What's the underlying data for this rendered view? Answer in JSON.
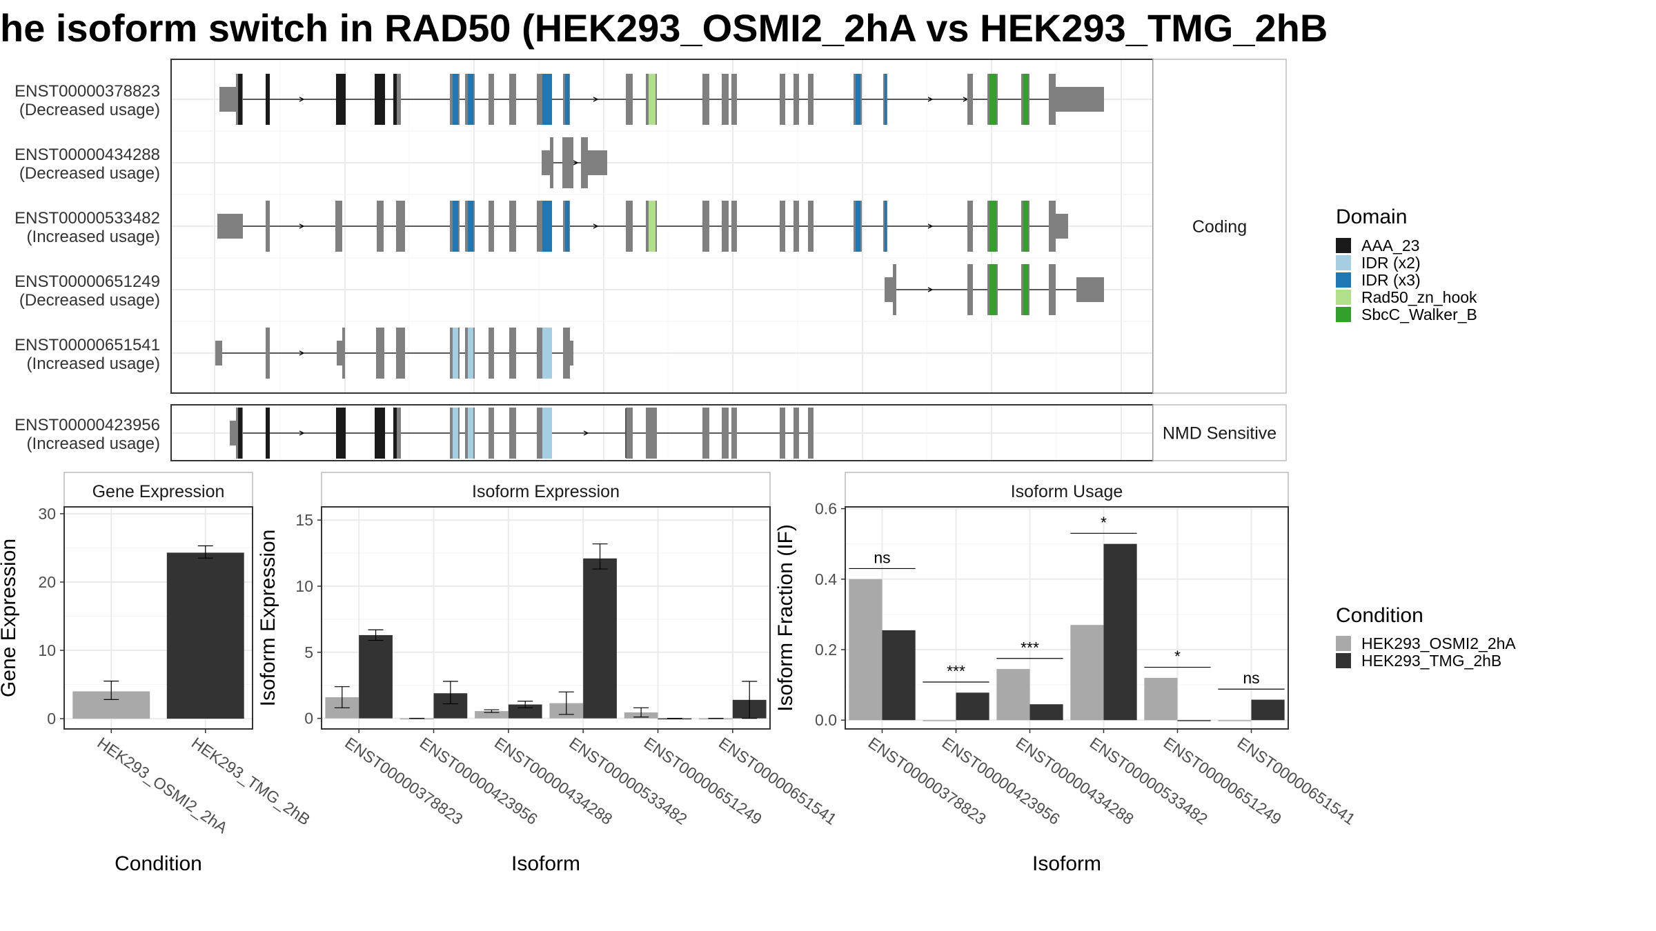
{
  "title": "he isoform switch in RAD50 (HEK293_OSMI2_2hA vs HEK293_TMG_2hB",
  "colors": {
    "AAA_23": "#1a1a1a",
    "IDR (x2)": "#a6cee3",
    "IDR (x3)": "#1f78b4",
    "Rad50_zn_hook": "#b2df8a",
    "SbcC_Walker_B": "#33a02c",
    "none": "#808080",
    "cond_a": "#a9a9a9",
    "cond_b": "#333333"
  },
  "structure": {
    "facets": [
      "Coding",
      "NMD Sensitive"
    ],
    "transcripts": [
      {
        "id": "ENST00000378823",
        "usage": "(Decreased usage)",
        "group": "Coding"
      },
      {
        "id": "ENST00000434288",
        "usage": "(Decreased usage)",
        "group": "Coding"
      },
      {
        "id": "ENST00000533482",
        "usage": "(Increased usage)",
        "group": "Coding"
      },
      {
        "id": "ENST00000651249",
        "usage": "(Decreased usage)",
        "group": "Coding"
      },
      {
        "id": "ENST00000651541",
        "usage": "(Increased usage)",
        "group": "Coding"
      },
      {
        "id": "ENST00000423956",
        "usage": "(Increased usage)",
        "group": "NMD Sensitive"
      }
    ]
  },
  "legend_domain": {
    "title": "Domain",
    "items": [
      "AAA_23",
      "IDR (x2)",
      "IDR (x3)",
      "Rad50_zn_hook",
      "SbcC_Walker_B"
    ]
  },
  "legend_condition": {
    "title": "Condition",
    "items": [
      "HEK293_OSMI2_2hA",
      "HEK293_TMG_2hB"
    ]
  },
  "chart_data": [
    {
      "type": "bar",
      "title": "Gene Expression",
      "xlabel": "Condition",
      "ylabel": "Gene Expression",
      "ylim": [
        -1.5,
        31
      ],
      "yticks": [
        0,
        10,
        20,
        30
      ],
      "categories": [
        "HEK293_OSMI2_2hA",
        "HEK293_TMG_2hB"
      ],
      "values": [
        4.0,
        24.3
      ],
      "errors": [
        [
          2.8,
          5.5
        ],
        [
          23.5,
          25.3
        ]
      ]
    },
    {
      "type": "bar",
      "title": "Isoform Expression",
      "xlabel": "Isoform",
      "ylabel": "Isoform Expression",
      "ylim": [
        -0.8,
        16
      ],
      "yticks": [
        0,
        5,
        10,
        15
      ],
      "categories": [
        "ENST00000378823",
        "ENST00000423956",
        "ENST00000434288",
        "ENST00000533482",
        "ENST00000651249",
        "ENST00000651541"
      ],
      "series": [
        {
          "name": "HEK293_OSMI2_2hA",
          "values": [
            1.6,
            0.0,
            0.55,
            1.15,
            0.45,
            0.0
          ],
          "errors": [
            [
              0.8,
              2.4
            ],
            [
              0.0,
              0.0
            ],
            [
              0.45,
              0.65
            ],
            [
              0.3,
              2.0
            ],
            [
              0.1,
              0.8
            ],
            [
              0.0,
              0.0
            ]
          ]
        },
        {
          "name": "HEK293_TMG_2hB",
          "values": [
            6.3,
            1.9,
            1.05,
            12.1,
            0.0,
            1.4
          ],
          "errors": [
            [
              5.9,
              6.7
            ],
            [
              1.1,
              2.8
            ],
            [
              0.8,
              1.3
            ],
            [
              11.3,
              13.2
            ],
            [
              0.0,
              0.0
            ],
            [
              0.0,
              2.8
            ]
          ]
        }
      ]
    },
    {
      "type": "bar",
      "title": "Isoform Usage",
      "xlabel": "Isoform",
      "ylabel": "Isoform Fraction (IF)",
      "ylim": [
        -0.025,
        0.605
      ],
      "yticks": [
        0.0,
        0.2,
        0.4,
        0.6
      ],
      "ytick_labels": [
        "0.0",
        "0.2",
        "0.4",
        "0.6"
      ],
      "categories": [
        "ENST00000378823",
        "ENST00000423956",
        "ENST00000434288",
        "ENST00000533482",
        "ENST00000651249",
        "ENST00000651541"
      ],
      "series": [
        {
          "name": "HEK293_OSMI2_2hA",
          "values": [
            0.4,
            0.0,
            0.145,
            0.27,
            0.12,
            0.0
          ]
        },
        {
          "name": "HEK293_TMG_2hB",
          "values": [
            0.255,
            0.078,
            0.045,
            0.5,
            0.0,
            0.058
          ]
        }
      ],
      "significance": [
        "ns",
        "***",
        "***",
        "*",
        "*",
        "ns"
      ]
    }
  ]
}
